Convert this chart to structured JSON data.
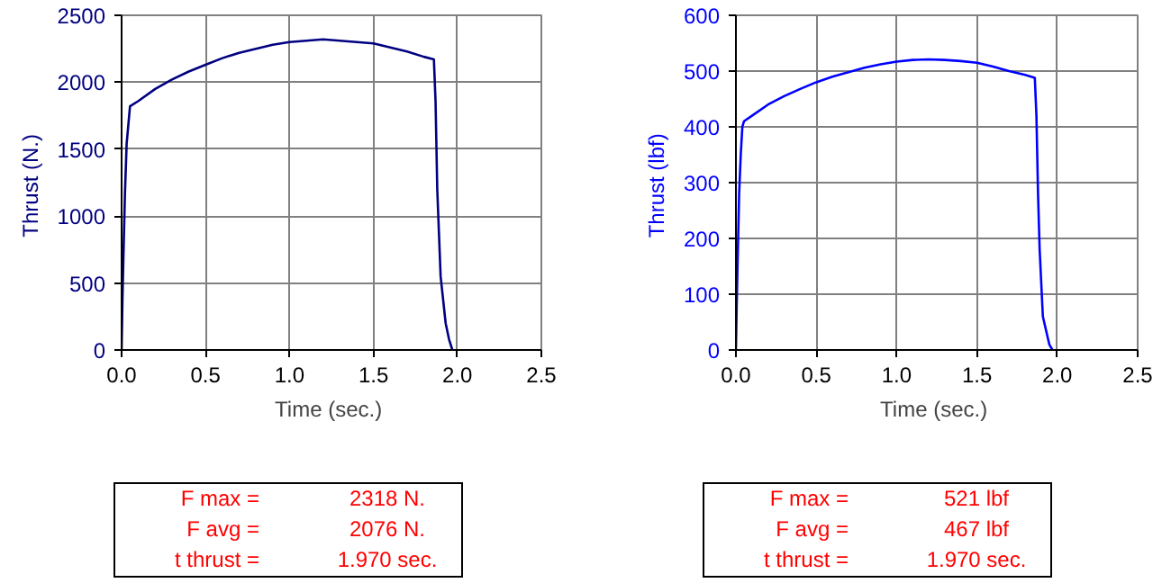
{
  "chart_data": [
    {
      "type": "line",
      "xlabel": "Time  (sec.)",
      "ylabel": "Thrust  (N.)",
      "series": [
        {
          "color": "#000080",
          "x": [
            0,
            0.005,
            0.01,
            0.02,
            0.03,
            0.05,
            0.1,
            0.2,
            0.3,
            0.4,
            0.5,
            0.6,
            0.7,
            0.8,
            0.9,
            1.0,
            1.1,
            1.2,
            1.3,
            1.4,
            1.5,
            1.6,
            1.7,
            1.8,
            1.86,
            1.87,
            1.88,
            1.9,
            1.93,
            1.95,
            1.97
          ],
          "values": [
            0,
            370,
            650,
            1170,
            1540,
            1820,
            1860,
            1950,
            2020,
            2080,
            2130,
            2180,
            2220,
            2250,
            2280,
            2300,
            2310,
            2320,
            2310,
            2300,
            2290,
            2260,
            2230,
            2190,
            2170,
            1850,
            1200,
            550,
            200,
            80,
            0
          ]
        }
      ],
      "xlim": [
        0,
        2.5
      ],
      "ylim": [
        0,
        2500
      ],
      "xticks": [
        {
          "value": 0,
          "label": "0.0"
        },
        0.5,
        {
          "value": 1,
          "label": "1.0"
        },
        1.5,
        {
          "value": 2,
          "label": "2.0"
        },
        2.5
      ],
      "yticks": [
        0,
        500,
        1000,
        1500,
        2000,
        2500
      ],
      "grid": true,
      "marker": "none",
      "line_style": "solid",
      "annotations": [
        "F max =",
        "2318 N.",
        "F avg =",
        "2076 N.",
        "t thrust =",
        "1.970 sec."
      ]
    },
    {
      "type": "line",
      "xlabel": "Time  (sec.)",
      "ylabel": "Thrust  (lbf)",
      "series": [
        {
          "color": "#0000ff",
          "x": [
            0,
            0.005,
            0.01,
            0.02,
            0.03,
            0.04,
            0.05,
            0.1,
            0.2,
            0.3,
            0.4,
            0.5,
            0.6,
            0.7,
            0.8,
            0.9,
            1.0,
            1.1,
            1.2,
            1.3,
            1.4,
            1.5,
            1.6,
            1.7,
            1.8,
            1.86,
            1.87,
            1.88,
            1.89,
            1.91,
            1.95,
            1.97
          ],
          "values": [
            0,
            83,
            150,
            280,
            350,
            400,
            410,
            420,
            440,
            455,
            468,
            480,
            490,
            498,
            506,
            512,
            517,
            520,
            521,
            520,
            518,
            515,
            508,
            500,
            493,
            488,
            420,
            280,
            180,
            60,
            10,
            0
          ]
        }
      ],
      "xlim": [
        0,
        2.5
      ],
      "ylim": [
        0,
        600
      ],
      "xticks": [
        {
          "value": 0,
          "label": "0.0"
        },
        0.5,
        {
          "value": 1,
          "label": "1.0"
        },
        1.5,
        {
          "value": 2,
          "label": "2.0"
        },
        2.5
      ],
      "yticks": [
        0,
        100,
        200,
        300,
        400,
        500,
        600
      ],
      "grid": true,
      "marker": "none",
      "line_style": "solid",
      "annotations": [
        "F max =",
        "521 lbf",
        "F avg =",
        "467 lbf",
        "t thrust =",
        "1.970 sec."
      ]
    }
  ]
}
